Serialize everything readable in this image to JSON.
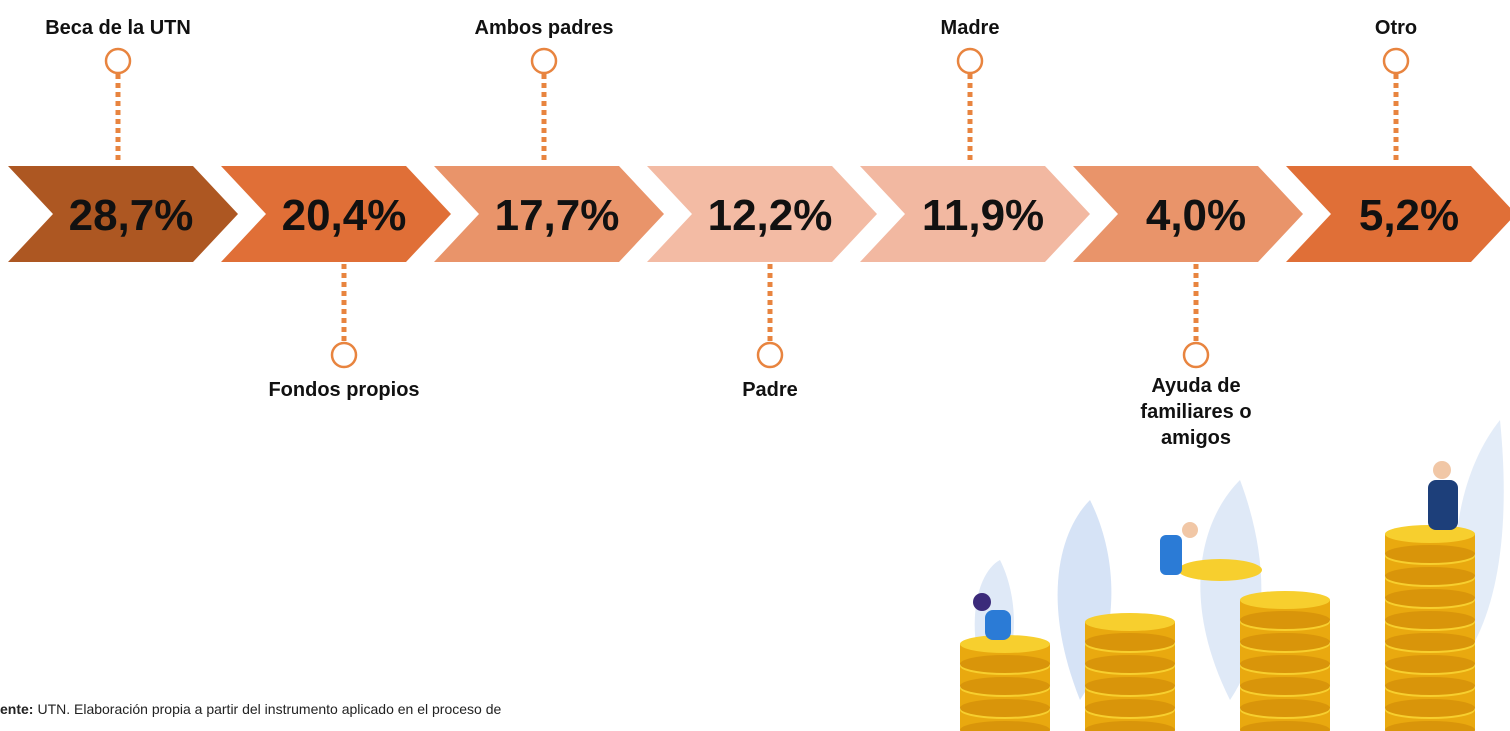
{
  "items": [
    {
      "label": "Beca de la UTN",
      "value": "28,7%"
    },
    {
      "label": "Fondos propios",
      "value": "20,4%"
    },
    {
      "label": "Ambos padres",
      "value": "17,7%"
    },
    {
      "label": "Padre",
      "value": "12,2%"
    },
    {
      "label": "Madre",
      "value": "11,9%"
    },
    {
      "label": "Ayuda de familiares o amigos",
      "value": "4,0%"
    },
    {
      "label": "Otro",
      "value": "5,2%"
    }
  ],
  "source": {
    "prefix": "ente:",
    "text": "UTN. Elaboración propia a partir del instrumento aplicado en el proceso de"
  }
}
